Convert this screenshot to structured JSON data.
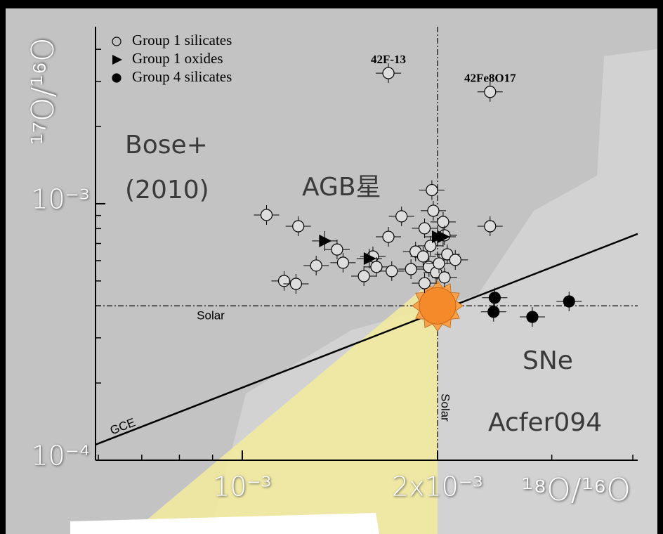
{
  "chart_data": {
    "type": "scatter",
    "x_label": "¹⁸O/¹⁶O",
    "y_label": "¹⁷O/¹⁶O",
    "log_x": true,
    "log_y": true,
    "xlim": [
      0.000594,
      0.00407
    ],
    "ylim": [
      0.0001,
      0.0049
    ],
    "xticks": [
      {
        "value": 0.001,
        "label": "10⁻³"
      },
      {
        "value": 0.002,
        "label": "2x10⁻³"
      }
    ],
    "xminorticks": [
      0.0006,
      0.0007,
      0.0008,
      0.0009,
      0.003,
      0.004
    ],
    "yticks": [
      {
        "value": 0.0001,
        "label": "10⁻⁴"
      },
      {
        "value": 0.001,
        "label": "10⁻³"
      }
    ],
    "yminorticks": [
      0.0002,
      0.0003,
      0.0004,
      0.0005,
      0.0006,
      0.0007,
      0.0008,
      0.0009,
      0.002,
      0.003,
      0.004
    ],
    "legend": "upper left",
    "series": [
      {
        "name": "Group 1 silicates",
        "marker": "open-circle",
        "color": "#dddddd",
        "x": [
          0.00109,
          0.00122,
          0.00116,
          0.00121,
          0.0013,
          0.0014,
          0.00143,
          0.00154,
          0.00159,
          0.00161,
          0.00168,
          0.0017,
          0.00176,
          0.00182,
          0.00185,
          0.0019,
          0.00194,
          0.00195,
          0.00196,
          0.00197,
          0.00191,
          0.00204,
          0.00205,
          0.00199,
          0.00201,
          0.00207,
          0.00213,
          0.00191,
          0.00205,
          0.00168,
          0.00241,
          0.00241
        ],
        "values": [
          0.000904,
          0.000817,
          0.0005,
          0.000487,
          0.000574,
          0.000663,
          0.000589,
          0.000522,
          0.000623,
          0.000567,
          0.000743,
          0.000546,
          0.000893,
          0.000556,
          0.000651,
          0.000623,
          0.000567,
          0.000685,
          0.00113,
          0.000939,
          0.000802,
          0.000849,
          0.000753,
          0.000539,
          0.000585,
          0.000635,
          0.000604,
          0.00049,
          0.000516,
          0.00323,
          0.00273,
          0.000817
        ],
        "labels": [
          null,
          null,
          null,
          null,
          null,
          null,
          null,
          null,
          null,
          null,
          null,
          null,
          null,
          null,
          null,
          null,
          null,
          null,
          null,
          null,
          null,
          null,
          null,
          null,
          null,
          null,
          null,
          null,
          null,
          "42F-13",
          "42Fe8O17",
          null
        ]
      },
      {
        "name": "Group 1 oxides",
        "marker": "triangle",
        "color": "#000000",
        "x": [
          0.00134,
          0.00157,
          0.002,
          0.00204
        ],
        "values": [
          0.000716,
          0.000611,
          0.000743,
          0.000743
        ]
      },
      {
        "name": "Group 4 silicates",
        "marker": "filled-circle",
        "color": "#000000",
        "x": [
          0.00245,
          0.00244,
          0.0028,
          0.00319
        ],
        "values": [
          0.00043,
          0.000379,
          0.000362,
          0.000416
        ]
      }
    ],
    "reference_lines": [
      {
        "label": "Solar",
        "axis": "x",
        "value": 0.002
      },
      {
        "label": "Solar",
        "axis": "y",
        "value": 0.0004
      }
    ],
    "gce": {
      "label": "GCE",
      "x": [
        0.000594,
        0.00407
      ],
      "y": [
        0.000115,
        0.000763
      ]
    },
    "annotations": [
      "Bose+",
      "(2010)",
      "AGB星",
      "SNe",
      "Acfer094"
    ]
  }
}
